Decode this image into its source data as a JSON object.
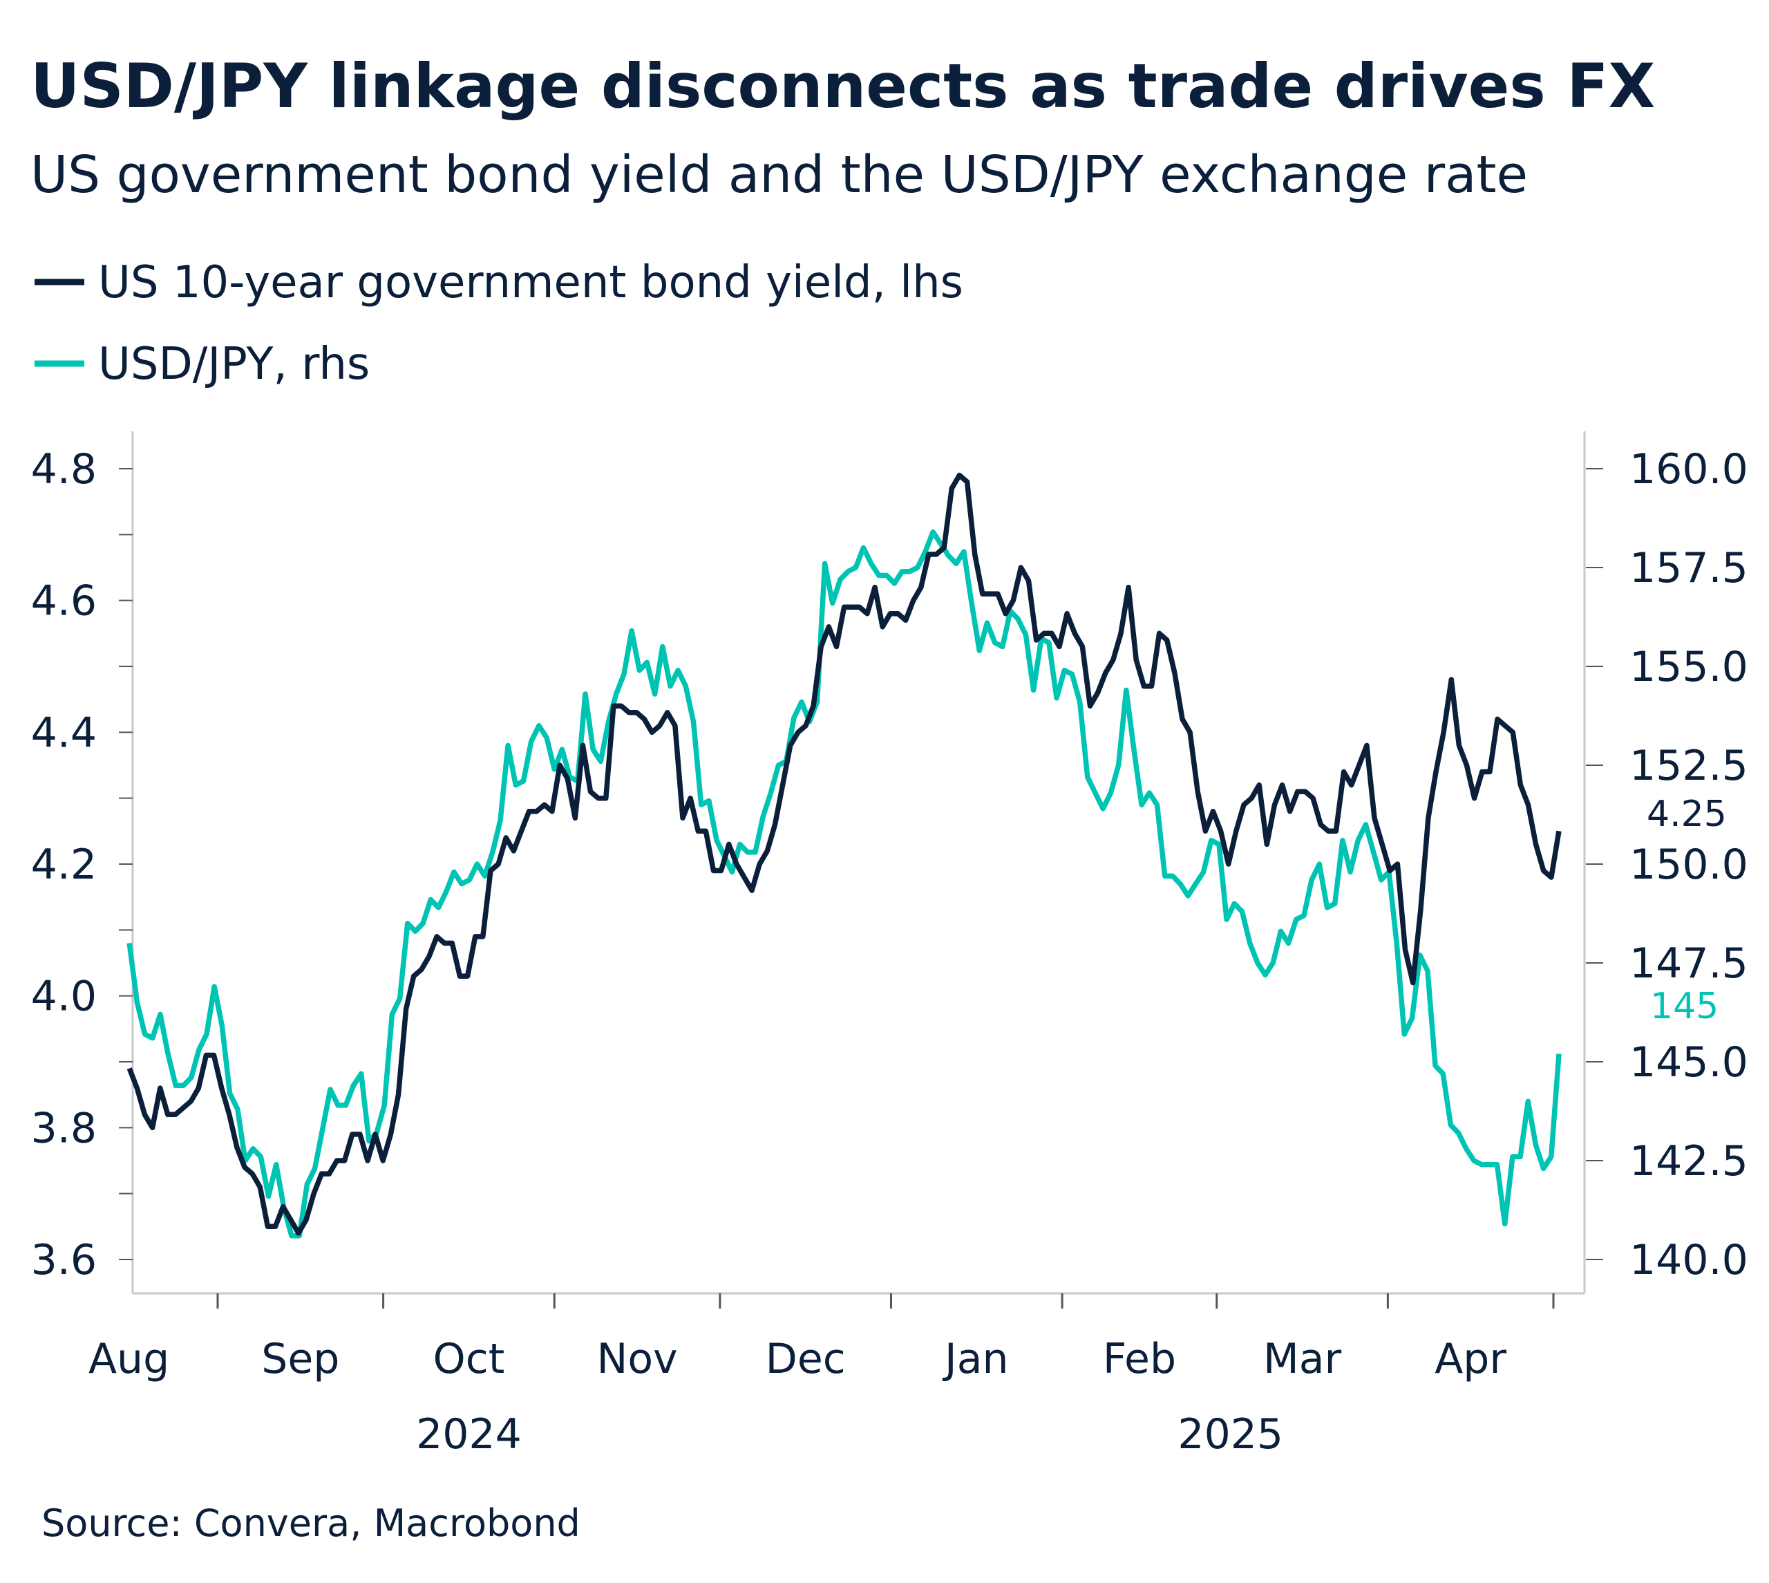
{
  "title": "USD/JPY linkage disconnects as trade drives FX",
  "subtitle": "US government bond yield and the USD/JPY exchange rate",
  "source": "Source: Convera, Macrobond",
  "chart_data": {
    "type": "line",
    "title": "USD/JPY linkage disconnects as trade drives FX",
    "subtitle": "US government bond yield and the USD/JPY exchange rate",
    "legend_position": "top-left",
    "grid": false,
    "x_start": "2024-08-16",
    "x_end": "2025-05-02",
    "x_tick_labels": [
      "Aug",
      "Sep",
      "Oct",
      "Nov",
      "Dec",
      "Jan",
      "Feb",
      "Mar",
      "Apr"
    ],
    "x_year_labels": [
      "2024",
      "2025"
    ],
    "y_left": {
      "ylim": [
        3.6,
        4.8
      ],
      "ticks": [
        "3.6",
        "3.8",
        "4.0",
        "4.2",
        "4.4",
        "4.6",
        "4.8"
      ]
    },
    "y_right": {
      "ylim": [
        140,
        160
      ],
      "ticks": [
        "140.0",
        "142.5",
        "145.0",
        "147.5",
        "150.0",
        "152.5",
        "155.0",
        "157.5",
        "160.0"
      ]
    },
    "end_labels": {
      "yield": "4.25",
      "usdjpy": "145"
    },
    "series": [
      {
        "name": "US 10-year government bond yield, lhs",
        "axis": "left",
        "color": "#0b1f3a",
        "values": [
          3.89,
          3.86,
          3.82,
          3.8,
          3.86,
          3.82,
          3.82,
          3.83,
          3.84,
          3.86,
          3.91,
          3.91,
          3.86,
          3.82,
          3.77,
          3.74,
          3.73,
          3.71,
          3.65,
          3.65,
          3.68,
          3.66,
          3.64,
          3.66,
          3.7,
          3.73,
          3.73,
          3.75,
          3.75,
          3.79,
          3.79,
          3.75,
          3.79,
          3.75,
          3.79,
          3.85,
          3.98,
          4.03,
          4.04,
          4.06,
          4.09,
          4.08,
          4.08,
          4.03,
          4.03,
          4.09,
          4.09,
          4.19,
          4.2,
          4.24,
          4.22,
          4.25,
          4.28,
          4.28,
          4.29,
          4.28,
          4.35,
          4.33,
          4.27,
          4.38,
          4.31,
          4.3,
          4.3,
          4.44,
          4.44,
          4.43,
          4.43,
          4.42,
          4.4,
          4.41,
          4.43,
          4.41,
          4.27,
          4.3,
          4.25,
          4.25,
          4.19,
          4.19,
          4.23,
          4.2,
          4.18,
          4.16,
          4.2,
          4.22,
          4.26,
          4.32,
          4.38,
          4.4,
          4.41,
          4.44,
          4.53,
          4.56,
          4.53,
          4.59,
          4.59,
          4.59,
          4.58,
          4.62,
          4.56,
          4.58,
          4.58,
          4.57,
          4.6,
          4.62,
          4.67,
          4.67,
          4.68,
          4.77,
          4.79,
          4.78,
          4.67,
          4.61,
          4.61,
          4.61,
          4.58,
          4.6,
          4.65,
          4.63,
          4.54,
          4.55,
          4.55,
          4.53,
          4.58,
          4.55,
          4.53,
          4.44,
          4.46,
          4.49,
          4.51,
          4.55,
          4.62,
          4.51,
          4.47,
          4.47,
          4.55,
          4.54,
          4.49,
          4.42,
          4.4,
          4.31,
          4.25,
          4.28,
          4.25,
          4.2,
          4.25,
          4.29,
          4.3,
          4.32,
          4.23,
          4.29,
          4.32,
          4.28,
          4.31,
          4.31,
          4.3,
          4.26,
          4.25,
          4.25,
          4.34,
          4.32,
          4.35,
          4.38,
          4.27,
          4.23,
          4.19,
          4.2,
          4.07,
          4.02,
          4.13,
          4.27,
          4.34,
          4.4,
          4.48,
          4.38,
          4.35,
          4.3,
          4.34,
          4.34,
          4.42,
          4.41,
          4.4,
          4.32,
          4.29,
          4.23,
          4.19,
          4.18,
          4.25
        ]
      },
      {
        "name": "USD/JPY, rhs",
        "axis": "right",
        "color": "#00c4b3",
        "values": [
          148.0,
          146.5,
          145.7,
          145.6,
          146.2,
          145.2,
          144.4,
          144.4,
          144.6,
          145.3,
          145.7,
          146.9,
          145.9,
          144.2,
          143.8,
          142.5,
          142.8,
          142.6,
          141.6,
          142.4,
          141.3,
          140.6,
          140.6,
          141.9,
          142.3,
          143.3,
          144.3,
          143.9,
          143.9,
          144.4,
          144.7,
          143.0,
          143.2,
          143.9,
          146.2,
          146.6,
          148.5,
          148.3,
          148.5,
          149.1,
          148.9,
          149.3,
          149.8,
          149.5,
          149.6,
          150.0,
          149.7,
          150.3,
          151.1,
          153.0,
          152.0,
          152.1,
          153.1,
          153.5,
          153.2,
          152.4,
          152.9,
          152.2,
          152.1,
          154.3,
          152.9,
          152.6,
          153.6,
          154.3,
          154.8,
          155.9,
          154.9,
          155.1,
          154.3,
          155.5,
          154.5,
          154.9,
          154.5,
          153.6,
          151.5,
          151.6,
          150.6,
          150.2,
          149.8,
          150.5,
          150.3,
          150.3,
          151.2,
          151.8,
          152.5,
          152.6,
          153.7,
          154.1,
          153.6,
          154.1,
          157.6,
          156.6,
          157.2,
          157.4,
          157.5,
          158.0,
          157.6,
          157.3,
          157.3,
          157.1,
          157.4,
          157.4,
          157.5,
          157.9,
          158.4,
          158.1,
          157.8,
          157.6,
          157.9,
          156.6,
          155.4,
          156.1,
          155.6,
          155.5,
          156.4,
          156.2,
          155.8,
          154.4,
          155.7,
          155.6,
          154.2,
          154.9,
          154.8,
          154.1,
          152.2,
          151.8,
          151.4,
          151.8,
          152.5,
          154.4,
          152.9,
          151.5,
          151.8,
          151.5,
          149.7,
          149.7,
          149.5,
          149.2,
          149.5,
          149.8,
          150.6,
          150.5,
          148.6,
          149.0,
          148.8,
          148.0,
          147.5,
          147.2,
          147.5,
          148.3,
          148.0,
          148.6,
          148.7,
          149.6,
          150.0,
          148.9,
          149.0,
          150.6,
          149.8,
          150.6,
          151.0,
          150.3,
          149.6,
          149.8,
          148.0,
          145.7,
          146.1,
          147.7,
          147.3,
          144.9,
          144.7,
          143.4,
          143.2,
          142.8,
          142.5,
          142.4,
          142.4,
          142.4,
          140.9,
          142.6,
          142.6,
          144.0,
          142.9,
          142.3,
          142.6,
          145.2
        ]
      }
    ]
  }
}
